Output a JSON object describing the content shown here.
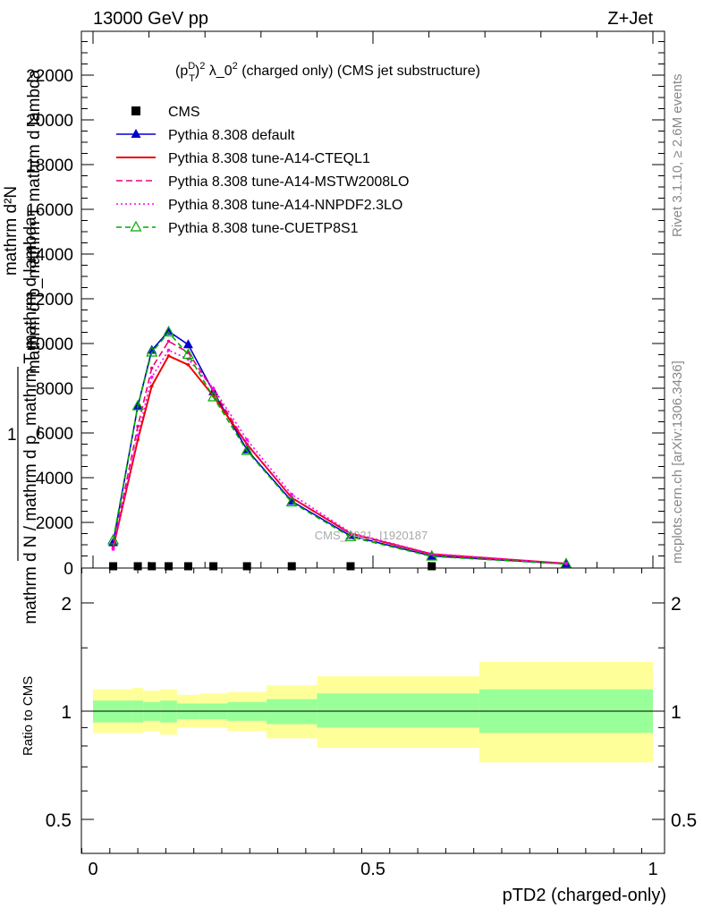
{
  "header": {
    "left": "13000 GeV pp",
    "right": "Z+Jet"
  },
  "side_labels": {
    "rivet": "Rivet 3.1.10, ≥ 2.6M events",
    "mcplots": "mcplots.cern.ch [arXiv:1306.3436]"
  },
  "chart_data": [
    {
      "type": "line",
      "title": "(p_T^D)^2 λ_0^2 (charged only) (CMS jet substructure)",
      "title_parts": {
        "pre": "(p",
        "sup1": "D",
        "sub1": "T",
        "mid": ")",
        "sup2": "2",
        "lambda": " λ_0",
        "sup3": "2",
        "post": " (charged only) (CMS jet substructure)"
      },
      "ylabel_top": "mathrm d²N",
      "ylabel_bottom": "mathrm d p_mathrm T mathrm d lambda",
      "ylabel_lower": "mathrm d N / mathrm d p_mathrm T mathrm d lambda",
      "ylabel_one": "1",
      "ylim": [
        0,
        24000
      ],
      "yticks": [
        2000,
        4000,
        6000,
        8000,
        10000,
        12000,
        14000,
        16000,
        18000,
        20000,
        22000
      ],
      "ytick_labels": [
        "2000",
        "4000",
        "6000",
        "8000",
        "10000",
        "12000",
        "14000",
        "16000",
        "18000",
        "20000",
        "22000"
      ],
      "xlim": [
        -0.02,
        1.02
      ],
      "watermark": "CMS_2021_I1920187",
      "legend_position": "top-left",
      "series": [
        {
          "name": "CMS",
          "style": "data",
          "color": "#000000",
          "x": [
            0.036,
            0.08,
            0.105,
            0.135,
            0.17,
            0.215,
            0.275,
            0.355,
            0.46,
            0.605
          ],
          "values": [
            0,
            0,
            0,
            0,
            0,
            0,
            0,
            0,
            0,
            0
          ]
        },
        {
          "name": "Pythia 8.308 default",
          "style": "solid-triangle",
          "color": "#0000cc",
          "x": [
            0.036,
            0.08,
            0.105,
            0.135,
            0.17,
            0.215,
            0.275,
            0.355,
            0.46,
            0.605,
            0.845
          ],
          "values": [
            1100,
            7200,
            9700,
            10550,
            9950,
            7850,
            5250,
            2950,
            1400,
            500,
            150
          ]
        },
        {
          "name": "Pythia 8.308 tune-A14-CTEQL1",
          "style": "solid",
          "color": "#ee0000",
          "x": [
            0.036,
            0.08,
            0.105,
            0.135,
            0.17,
            0.215,
            0.275,
            0.355,
            0.46,
            0.605,
            0.845
          ],
          "values": [
            850,
            5700,
            8100,
            9450,
            9050,
            7650,
            5500,
            3100,
            1500,
            580,
            160
          ]
        },
        {
          "name": "Pythia 8.308 tune-A14-MSTW2008LO",
          "style": "dashed",
          "color": "#ee0077",
          "x": [
            0.036,
            0.08,
            0.105,
            0.135,
            0.17,
            0.215,
            0.275,
            0.355,
            0.46,
            0.605,
            0.845
          ],
          "values": [
            900,
            6300,
            8900,
            10100,
            9600,
            7900,
            5500,
            3100,
            1500,
            570,
            160
          ]
        },
        {
          "name": "Pythia 8.308 tune-A14-NNPDF2.3LO",
          "style": "dotted",
          "color": "#ff00ff",
          "x": [
            0.036,
            0.08,
            0.105,
            0.135,
            0.17,
            0.215,
            0.275,
            0.355,
            0.46,
            0.605,
            0.845
          ],
          "values": [
            800,
            5900,
            8500,
            9700,
            9300,
            8000,
            5700,
            3250,
            1550,
            600,
            170
          ]
        },
        {
          "name": "Pythia 8.308 tune-CUETP8S1",
          "style": "dashed-open-triangle",
          "color": "#00aa00",
          "x": [
            0.036,
            0.08,
            0.105,
            0.135,
            0.17,
            0.215,
            0.275,
            0.355,
            0.46,
            0.605,
            0.845
          ],
          "values": [
            1200,
            7200,
            9600,
            10500,
            9500,
            7600,
            5200,
            2900,
            1350,
            480,
            140
          ]
        }
      ]
    },
    {
      "type": "area",
      "ylabel": "Ratio to CMS",
      "xlabel": "pTD2 (charged-only)",
      "ylim": [
        0.38,
        2.3
      ],
      "yticks": [
        0.5,
        1,
        2
      ],
      "ytick_labels": [
        "0.5",
        "1",
        "2"
      ],
      "xlim": [
        -0.02,
        1.02
      ],
      "xticks": [
        0,
        0.5,
        1
      ],
      "xtick_labels": [
        "0",
        "0.5",
        "1"
      ],
      "bins": [
        {
          "x0": 0.0,
          "x1": 0.07,
          "inner": [
            0.93,
            1.07
          ],
          "outer": [
            0.87,
            1.15
          ]
        },
        {
          "x0": 0.07,
          "x1": 0.09,
          "inner": [
            0.93,
            1.07
          ],
          "outer": [
            0.87,
            1.16
          ]
        },
        {
          "x0": 0.09,
          "x1": 0.12,
          "inner": [
            0.94,
            1.06
          ],
          "outer": [
            0.88,
            1.14
          ]
        },
        {
          "x0": 0.12,
          "x1": 0.15,
          "inner": [
            0.93,
            1.07
          ],
          "outer": [
            0.86,
            1.15
          ]
        },
        {
          "x0": 0.15,
          "x1": 0.19,
          "inner": [
            0.95,
            1.05
          ],
          "outer": [
            0.9,
            1.11
          ]
        },
        {
          "x0": 0.19,
          "x1": 0.24,
          "inner": [
            0.95,
            1.05
          ],
          "outer": [
            0.9,
            1.12
          ]
        },
        {
          "x0": 0.24,
          "x1": 0.31,
          "inner": [
            0.94,
            1.06
          ],
          "outer": [
            0.88,
            1.13
          ]
        },
        {
          "x0": 0.31,
          "x1": 0.4,
          "inner": [
            0.92,
            1.08
          ],
          "outer": [
            0.84,
            1.18
          ]
        },
        {
          "x0": 0.4,
          "x1": 0.69,
          "inner": [
            0.9,
            1.12
          ],
          "outer": [
            0.79,
            1.25
          ]
        },
        {
          "x0": 0.69,
          "x1": 1.0,
          "inner": [
            0.87,
            1.15
          ],
          "outer": [
            0.72,
            1.37
          ]
        }
      ],
      "inner_color": "#99ff99",
      "outer_color": "#ffff99"
    }
  ]
}
